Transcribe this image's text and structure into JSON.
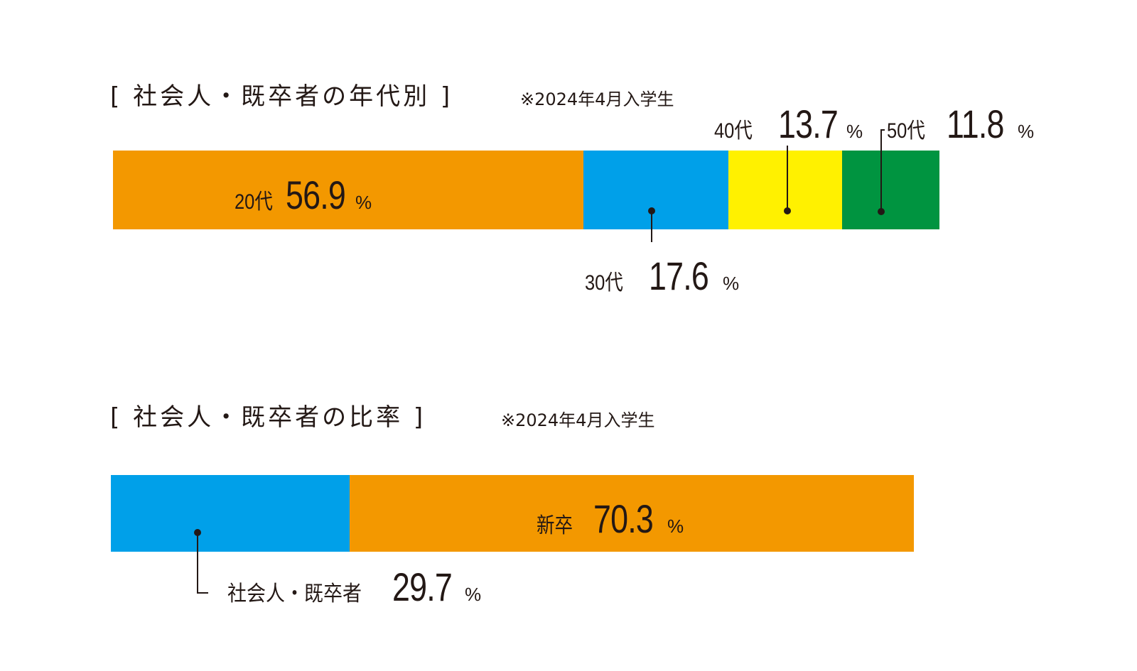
{
  "chart_data": [
    {
      "type": "bar",
      "orientation": "horizontal-stacked",
      "title": "[ 社会人・既卒者の年代別 ]",
      "note": "※2024年4月入学生",
      "categories": [
        "20代",
        "30代",
        "40代",
        "50代"
      ],
      "values": [
        56.9,
        17.6,
        13.7,
        11.8
      ],
      "value_labels": [
        "56.9",
        "17.6",
        "13.7",
        "11.8"
      ],
      "unit": "%",
      "colors": [
        "#F39800",
        "#00A0E9",
        "#FFF100",
        "#009440"
      ]
    },
    {
      "type": "bar",
      "orientation": "horizontal-stacked",
      "title": "[ 社会人・既卒者の比率 ]",
      "note": "※2024年4月入学生",
      "categories": [
        "社会人・既卒者",
        "新卒"
      ],
      "values": [
        29.7,
        70.3
      ],
      "value_labels": [
        "29.7",
        "70.3"
      ],
      "unit": "%",
      "colors": [
        "#00A0E9",
        "#F39800"
      ]
    }
  ]
}
